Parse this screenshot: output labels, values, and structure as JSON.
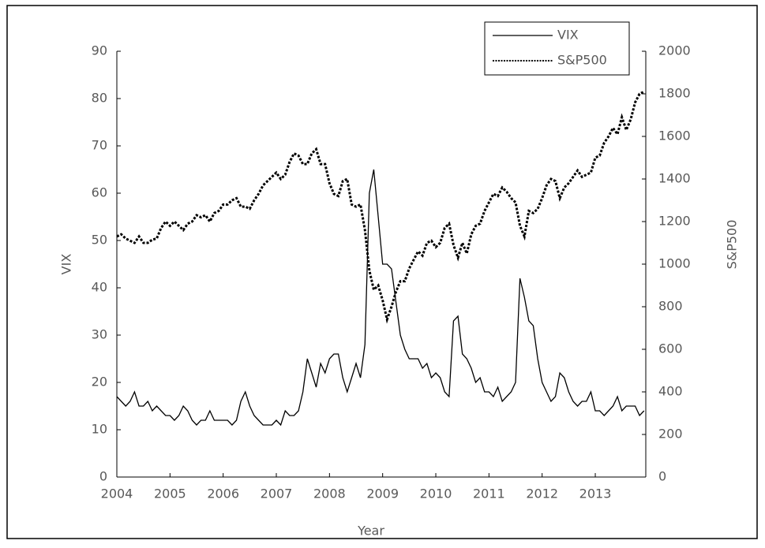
{
  "chart_data": {
    "type": "line",
    "x_label": "Year",
    "y_label": "VIX",
    "y2_label": "S&P500",
    "x": [
      2004,
      2004.083,
      2004.167,
      2004.25,
      2004.333,
      2004.417,
      2004.5,
      2004.583,
      2004.667,
      2004.75,
      2004.833,
      2004.917,
      2005,
      2005.083,
      2005.167,
      2005.25,
      2005.333,
      2005.417,
      2005.5,
      2005.583,
      2005.667,
      2005.75,
      2005.833,
      2005.917,
      2006,
      2006.083,
      2006.167,
      2006.25,
      2006.333,
      2006.417,
      2006.5,
      2006.583,
      2006.667,
      2006.75,
      2006.833,
      2006.917,
      2007,
      2007.083,
      2007.167,
      2007.25,
      2007.333,
      2007.417,
      2007.5,
      2007.583,
      2007.667,
      2007.75,
      2007.833,
      2007.917,
      2008,
      2008.083,
      2008.167,
      2008.25,
      2008.333,
      2008.417,
      2008.5,
      2008.583,
      2008.667,
      2008.75,
      2008.833,
      2008.917,
      2009,
      2009.083,
      2009.167,
      2009.25,
      2009.333,
      2009.417,
      2009.5,
      2009.583,
      2009.667,
      2009.75,
      2009.833,
      2009.917,
      2010,
      2010.083,
      2010.167,
      2010.25,
      2010.333,
      2010.417,
      2010.5,
      2010.583,
      2010.667,
      2010.75,
      2010.833,
      2010.917,
      2011,
      2011.083,
      2011.167,
      2011.25,
      2011.333,
      2011.417,
      2011.5,
      2011.583,
      2011.667,
      2011.75,
      2011.833,
      2011.917,
      2012,
      2012.083,
      2012.167,
      2012.25,
      2012.333,
      2012.417,
      2012.5,
      2012.583,
      2012.667,
      2012.75,
      2012.833,
      2012.917,
      2013,
      2013.083,
      2013.167,
      2013.25,
      2013.333,
      2013.417,
      2013.5,
      2013.583,
      2013.667,
      2013.75,
      2013.833,
      2013.917
    ],
    "series": [
      {
        "name": "VIX",
        "color": "#000000",
        "style": "solid",
        "values": [
          17,
          16,
          15,
          16,
          18,
          15,
          15,
          16,
          14,
          15,
          14,
          13,
          13,
          12,
          13,
          15,
          14,
          12,
          11,
          12,
          12,
          14,
          12,
          12,
          12,
          12,
          11,
          12,
          16,
          18,
          15,
          13,
          12,
          11,
          11,
          11,
          12,
          11,
          14,
          13,
          13,
          14,
          18,
          25,
          22,
          19,
          24,
          22,
          25,
          26,
          26,
          21,
          18,
          21,
          24,
          21,
          28,
          60,
          65,
          55,
          45,
          45,
          44,
          37,
          30,
          27,
          25,
          25,
          25,
          23,
          24,
          21,
          22,
          21,
          18,
          17,
          33,
          34,
          26,
          25,
          23,
          20,
          21,
          18,
          18,
          17,
          19,
          16,
          17,
          18,
          20,
          42,
          38,
          33,
          32,
          25,
          20,
          18,
          16,
          17,
          22,
          21,
          18,
          16,
          15,
          16,
          16,
          18,
          14,
          14,
          13,
          14,
          15,
          17,
          14,
          15,
          15,
          15,
          13,
          14
        ]
      },
      {
        "name": "S&P500",
        "color": "#000000",
        "style": "dotted",
        "axis": "y2",
        "values": [
          1130,
          1140,
          1120,
          1110,
          1100,
          1130,
          1100,
          1100,
          1115,
          1120,
          1170,
          1200,
          1180,
          1200,
          1180,
          1160,
          1190,
          1200,
          1230,
          1220,
          1230,
          1200,
          1240,
          1250,
          1280,
          1280,
          1300,
          1310,
          1270,
          1270,
          1260,
          1300,
          1330,
          1370,
          1390,
          1410,
          1430,
          1400,
          1420,
          1480,
          1520,
          1510,
          1470,
          1470,
          1520,
          1540,
          1470,
          1470,
          1380,
          1330,
          1320,
          1390,
          1400,
          1280,
          1270,
          1280,
          1160,
          970,
          880,
          900,
          830,
          740,
          800,
          870,
          920,
          920,
          980,
          1020,
          1060,
          1040,
          1100,
          1110,
          1080,
          1100,
          1170,
          1190,
          1090,
          1030,
          1100,
          1050,
          1140,
          1180,
          1190,
          1250,
          1290,
          1330,
          1320,
          1360,
          1340,
          1310,
          1290,
          1180,
          1130,
          1250,
          1240,
          1260,
          1310,
          1370,
          1400,
          1390,
          1310,
          1360,
          1380,
          1410,
          1440,
          1410,
          1420,
          1430,
          1500,
          1510,
          1570,
          1600,
          1640,
          1610,
          1690,
          1630,
          1680,
          1760,
          1800,
          1810
        ]
      }
    ],
    "xlim": [
      2004,
      2013.95
    ],
    "xticks": [
      2004,
      2005,
      2006,
      2007,
      2008,
      2009,
      2010,
      2011,
      2012,
      2013
    ],
    "ylim": [
      0,
      90
    ],
    "yticks": [
      0,
      10,
      20,
      30,
      40,
      50,
      60,
      70,
      80,
      90
    ],
    "y2lim": [
      0,
      2000
    ],
    "y2ticks": [
      0,
      200,
      400,
      600,
      800,
      1000,
      1200,
      1400,
      1600,
      1800,
      2000
    ],
    "grid": false,
    "legend": "top-right"
  }
}
